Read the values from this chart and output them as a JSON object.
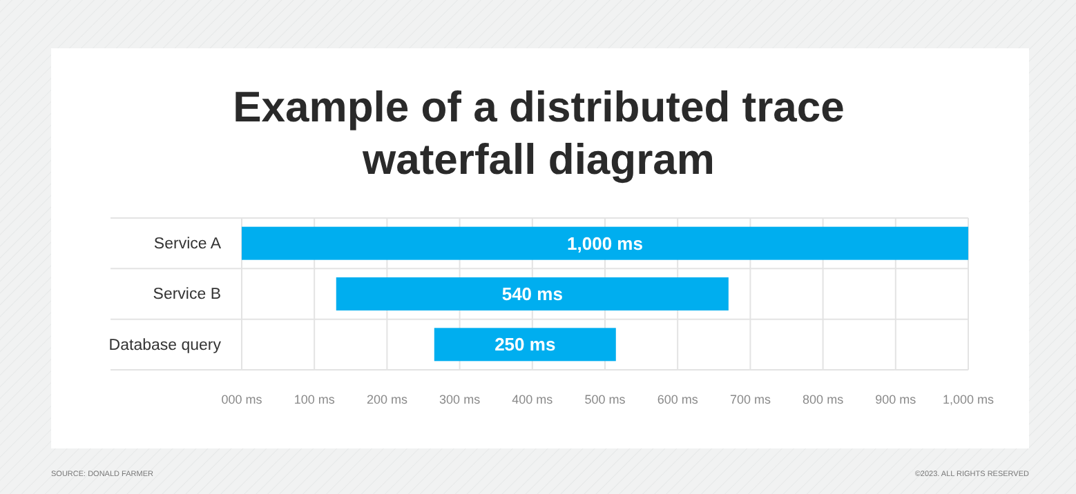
{
  "chart_data": {
    "type": "bar",
    "orientation": "horizontal",
    "title": "Example of a distributed trace waterfall diagram",
    "categories": [
      "Service A",
      "Service B",
      "Database query"
    ],
    "values": [
      1000,
      540,
      250
    ],
    "base": [
      0,
      130,
      265
    ],
    "value_labels": [
      "1,000 ms",
      "540 ms",
      "250 ms"
    ],
    "color": "#00aeef",
    "xlim": [
      0,
      1000
    ],
    "xticks": [
      {
        "value": 0,
        "label": "000 ms"
      },
      {
        "value": 100,
        "label": "100 ms"
      },
      {
        "value": 200,
        "label": "200 ms"
      },
      {
        "value": 300,
        "label": "300 ms"
      },
      {
        "value": 400,
        "label": "400 ms"
      },
      {
        "value": 500,
        "label": "500 ms"
      },
      {
        "value": 600,
        "label": "600 ms"
      },
      {
        "value": 700,
        "label": "700 ms"
      },
      {
        "value": 800,
        "label": "800 ms"
      },
      {
        "value": 900,
        "label": "900 ms"
      },
      {
        "value": 1000,
        "label": "1,000 ms"
      }
    ],
    "grid": true,
    "annotations": [
      "SOURCE: DONALD FARMER",
      "©2023. ALL RIGHTS RESERVED"
    ]
  }
}
